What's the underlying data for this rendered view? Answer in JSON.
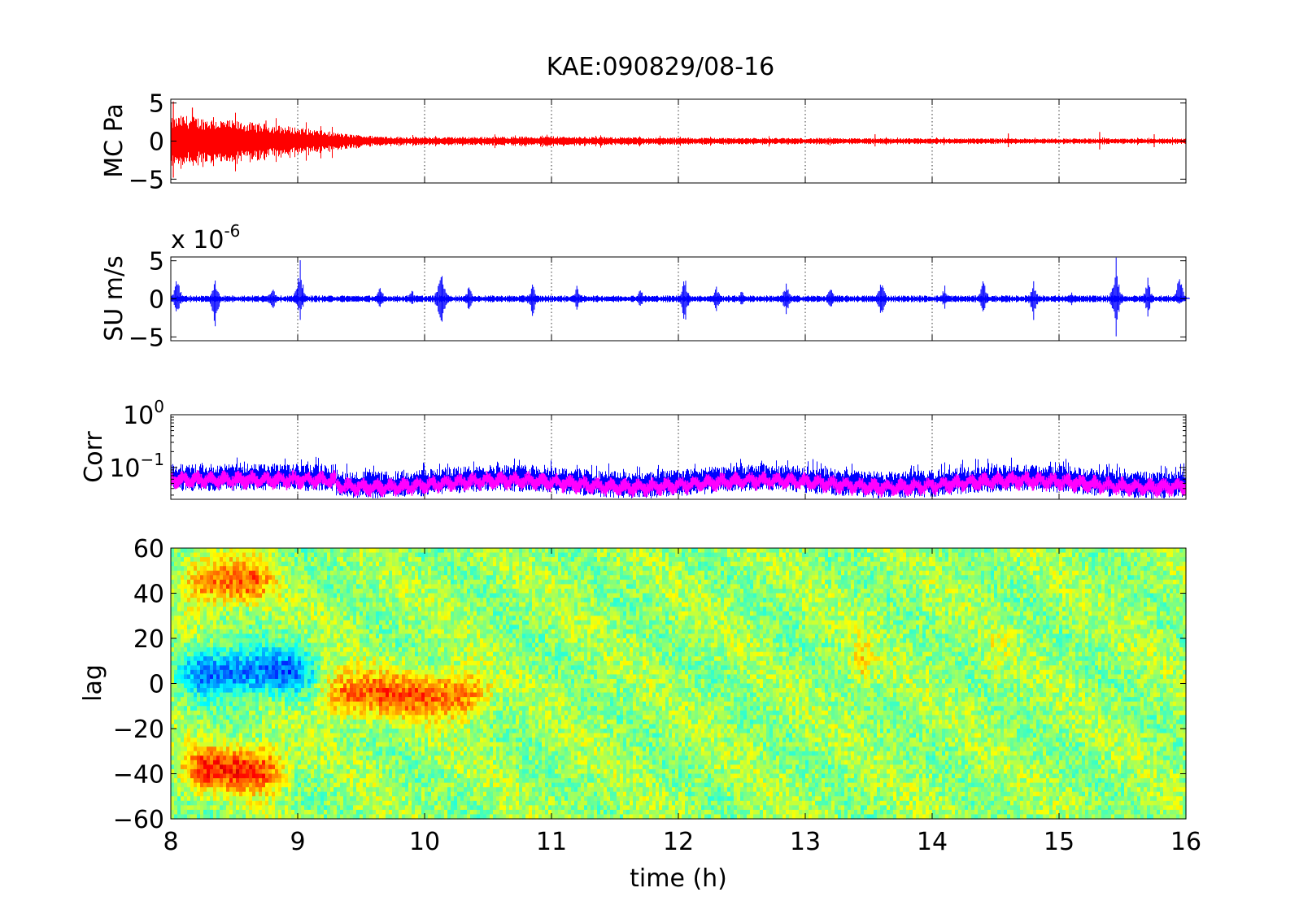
{
  "title": "KAE:090829/08-16",
  "chart_data": [
    {
      "panel": "mc",
      "type": "line",
      "ylabel": "MC Pa",
      "xlim": [
        8,
        16
      ],
      "ylim": [
        -5.5,
        5.5
      ],
      "yticks": [
        5,
        0,
        -5
      ],
      "xticks": [
        8,
        9,
        10,
        11,
        12,
        13,
        14,
        15,
        16
      ],
      "grid": "x-dotted",
      "series": [
        {
          "color": "#ff0000",
          "envelope": {
            "t": [
              8.0,
              8.1,
              8.2,
              8.4,
              8.6,
              8.8,
              9.0,
              9.2,
              9.4,
              9.6,
              9.8,
              10.0,
              10.5,
              11.0,
              11.5,
              12.0,
              12.5,
              13.0,
              13.5,
              14.0,
              14.5,
              15.0,
              15.5,
              16.0
            ],
            "amp": [
              2.6,
              3.0,
              2.8,
              2.5,
              2.2,
              1.9,
              1.6,
              1.2,
              0.8,
              0.6,
              0.5,
              0.45,
              0.5,
              0.55,
              0.45,
              0.4,
              0.38,
              0.35,
              0.33,
              0.32,
              0.32,
              0.3,
              0.3,
              0.3
            ]
          },
          "spikes": [
            {
              "t": 8.02,
              "min": -4.8,
              "max": 5.2
            },
            {
              "t": 8.17,
              "min": -2.6,
              "max": 4.4
            },
            {
              "t": 8.75,
              "min": -1.2,
              "max": 2.7
            },
            {
              "t": 13.55,
              "min": -0.7,
              "max": 0.9
            },
            {
              "t": 14.6,
              "min": -0.8,
              "max": 1.0
            },
            {
              "t": 15.32,
              "min": -1.1,
              "max": 1.2
            },
            {
              "t": 15.75,
              "min": -0.8,
              "max": 0.9
            }
          ]
        }
      ]
    },
    {
      "panel": "su",
      "type": "line",
      "ylabel": "SU m/s",
      "scale_label": "x 10",
      "scale_exponent": "-6",
      "xlim": [
        8,
        16
      ],
      "ylim": [
        -5.5,
        5.5
      ],
      "yticks": [
        5,
        0,
        -5
      ],
      "grid": "x-dotted",
      "series": [
        {
          "color": "#0000ff",
          "baseline_amp": 0.35,
          "events": [
            {
              "t": 8.05,
              "min": -2.5,
              "max": 3.5
            },
            {
              "t": 8.35,
              "min": -4.5,
              "max": 3.0
            },
            {
              "t": 8.8,
              "min": -2.0,
              "max": 2.0
            },
            {
              "t": 9.02,
              "min": -3.0,
              "max": 5.5
            },
            {
              "t": 9.65,
              "min": -1.5,
              "max": 2.0
            },
            {
              "t": 9.9,
              "min": -1.0,
              "max": 1.5
            },
            {
              "t": 10.13,
              "min": -5.5,
              "max": 5.5
            },
            {
              "t": 10.35,
              "min": -1.8,
              "max": 2.0
            },
            {
              "t": 10.85,
              "min": -3.0,
              "max": 2.5
            },
            {
              "t": 11.2,
              "min": -1.5,
              "max": 1.8
            },
            {
              "t": 11.7,
              "min": -1.5,
              "max": 1.8
            },
            {
              "t": 12.05,
              "min": -4.0,
              "max": 3.5
            },
            {
              "t": 12.3,
              "min": -2.0,
              "max": 2.0
            },
            {
              "t": 12.5,
              "min": -1.2,
              "max": 1.5
            },
            {
              "t": 12.85,
              "min": -2.5,
              "max": 2.5
            },
            {
              "t": 13.2,
              "min": -1.5,
              "max": 1.8
            },
            {
              "t": 13.6,
              "min": -3.0,
              "max": 3.0
            },
            {
              "t": 14.1,
              "min": -1.5,
              "max": 2.0
            },
            {
              "t": 14.4,
              "min": -2.5,
              "max": 3.5
            },
            {
              "t": 14.8,
              "min": -3.0,
              "max": 2.5
            },
            {
              "t": 15.1,
              "min": -1.2,
              "max": 1.2
            },
            {
              "t": 15.45,
              "min": -5.0,
              "max": 5.5
            },
            {
              "t": 15.7,
              "min": -2.5,
              "max": 3.0
            },
            {
              "t": 15.95,
              "min": -1.0,
              "max": 4.0
            }
          ]
        }
      ]
    },
    {
      "panel": "corr",
      "type": "line",
      "ylabel": "Corr",
      "yscale": "log",
      "ylim": [
        0.025,
        1.0
      ],
      "yticks": [
        {
          "base": "10",
          "exp": "0",
          "value": 1.0
        },
        {
          "base": "10",
          "exp": "-1",
          "value": 0.1
        }
      ],
      "grid": "x-dotted",
      "series": [
        {
          "name": "",
          "color": "#0000ff",
          "mean": 0.055,
          "mean_early": 0.065,
          "spread": "noisy-envelope"
        },
        {
          "name": "",
          "color": "#ff00ff",
          "mean": 0.055,
          "mean_early": 0.065,
          "spread": "smoothed"
        }
      ]
    },
    {
      "panel": "lag",
      "type": "heatmap",
      "ylabel": "lag",
      "xlabel": "time (h)",
      "xlim": [
        8,
        16
      ],
      "ylim": [
        -60,
        60
      ],
      "yticks": [
        60,
        40,
        20,
        0,
        -20,
        -40,
        -60
      ],
      "xticks": [
        8,
        9,
        10,
        11,
        12,
        13,
        14,
        15,
        16
      ],
      "colormap": "jet",
      "features": [
        {
          "desc": "cyan band",
          "t": [
            8.0,
            9.2
          ],
          "lag_center": 5,
          "value": -0.6
        },
        {
          "desc": "yellow band",
          "t": [
            9.1,
            10.6
          ],
          "lag_center": -5,
          "value": 0.5
        },
        {
          "desc": "warm upper",
          "t": [
            8.0,
            8.9
          ],
          "lag_center": 45,
          "value": 0.5
        },
        {
          "desc": "warm lower",
          "t": [
            8.0,
            9.0
          ],
          "lag_center": -38,
          "value": 0.6
        },
        {
          "desc": "yellow patch",
          "t": [
            13.3,
            13.6
          ],
          "lag_center": 10,
          "value": 0.45
        },
        {
          "desc": "yellow patch",
          "t": [
            14.4,
            14.6
          ],
          "lag_center": 10,
          "value": 0.4
        }
      ]
    }
  ]
}
